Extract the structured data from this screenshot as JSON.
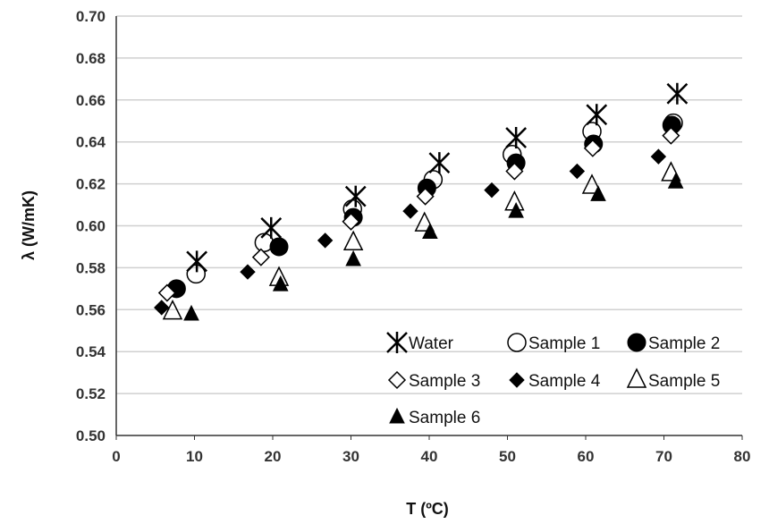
{
  "chart_data": {
    "type": "scatter",
    "xlabel": "T (ºC)",
    "ylabel": "λ (W/mK)",
    "xlim": [
      0,
      80
    ],
    "ylim": [
      0.5,
      0.7
    ],
    "xticks": [
      "0",
      "10",
      "20",
      "30",
      "40",
      "50",
      "60",
      "70",
      "80"
    ],
    "yticks": [
      "0.50",
      "0.52",
      "0.54",
      "0.56",
      "0.58",
      "0.60",
      "0.62",
      "0.64",
      "0.66",
      "0.68",
      "0.70"
    ],
    "grid": "horizontal",
    "legend_position": "bottom-right",
    "series": [
      {
        "name": "Water",
        "marker": "asterisk",
        "x": [
          10.3,
          19.8,
          30.6,
          41.3,
          51.1,
          61.4,
          71.7
        ],
        "y": [
          0.583,
          0.599,
          0.614,
          0.63,
          0.642,
          0.653,
          0.663
        ]
      },
      {
        "name": "Sample 1",
        "marker": "circle-open",
        "x": [
          10.2,
          18.9,
          30.2,
          40.5,
          50.6,
          60.8,
          71.2
        ],
        "y": [
          0.577,
          0.592,
          0.608,
          0.622,
          0.634,
          0.645,
          0.649
        ]
      },
      {
        "name": "Sample 2",
        "marker": "circle-filled",
        "x": [
          7.7,
          20.8,
          30.3,
          39.7,
          51.1,
          61.0,
          71.0
        ],
        "y": [
          0.57,
          0.59,
          0.604,
          0.618,
          0.63,
          0.639,
          0.648
        ]
      },
      {
        "name": "Sample 3",
        "marker": "diamond-open",
        "x": [
          6.5,
          18.5,
          30.0,
          39.5,
          50.9,
          60.9,
          70.9
        ],
        "y": [
          0.568,
          0.585,
          0.602,
          0.614,
          0.626,
          0.637,
          0.643
        ]
      },
      {
        "name": "Sample 4",
        "marker": "diamond-filled",
        "x": [
          5.8,
          16.8,
          26.7,
          37.6,
          48.0,
          58.9,
          69.3
        ],
        "y": [
          0.561,
          0.578,
          0.593,
          0.607,
          0.617,
          0.626,
          0.633
        ]
      },
      {
        "name": "Sample 5",
        "marker": "triangle-open",
        "x": [
          7.2,
          20.8,
          30.3,
          39.4,
          50.9,
          60.8,
          70.9
        ],
        "y": [
          0.559,
          0.575,
          0.592,
          0.601,
          0.611,
          0.619,
          0.625
        ]
      },
      {
        "name": "Sample 6",
        "marker": "triangle-filled",
        "x": [
          9.6,
          21.0,
          30.3,
          40.1,
          51.1,
          61.6,
          71.5
        ],
        "y": [
          0.558,
          0.572,
          0.584,
          0.597,
          0.607,
          0.615,
          0.621
        ]
      }
    ]
  }
}
